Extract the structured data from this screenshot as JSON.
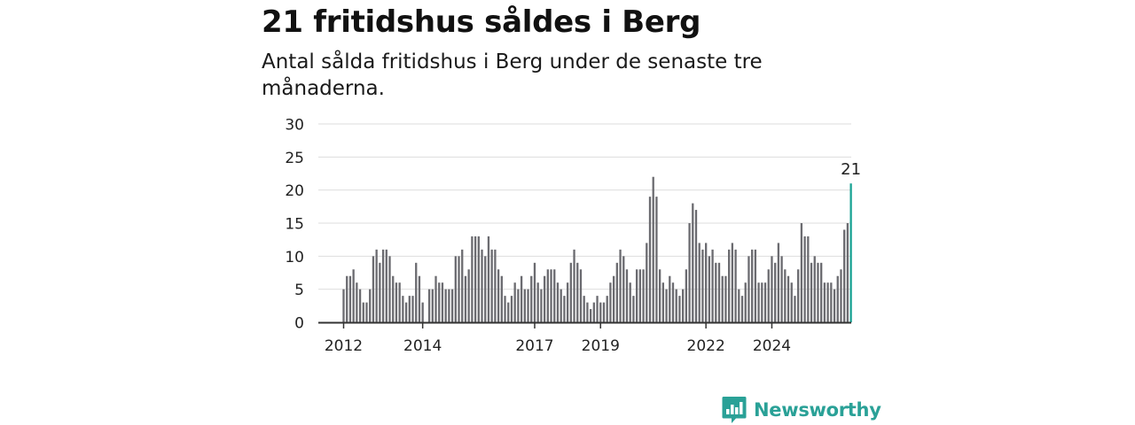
{
  "header": {
    "title": "21 fritidshus såldes i Berg",
    "subtitle": "Antal sålda fritidshus i Berg under de senaste tre månaderna."
  },
  "brand": {
    "name": "Newsworthy",
    "color": "#2aa197",
    "icon": "newsworthy-logo-icon"
  },
  "chart_data": {
    "type": "bar",
    "title": "21 fritidshus såldes i Berg",
    "subtitle": "Antal sålda fritidshus i Berg under de senaste tre månaderna.",
    "xlabel": "",
    "ylabel": "",
    "ylim": [
      0,
      30
    ],
    "yticks": [
      0,
      5,
      10,
      15,
      20,
      25,
      30
    ],
    "grid": true,
    "x_start": "2012-01",
    "x_tick_labels": [
      {
        "label": "2012",
        "index": 0
      },
      {
        "label": "2014",
        "index": 24
      },
      {
        "label": "2017",
        "index": 58
      },
      {
        "label": "2019",
        "index": 78
      },
      {
        "label": "2022",
        "index": 110
      },
      {
        "label": "2024",
        "index": 130
      }
    ],
    "colors": {
      "bar": "#6b6b70",
      "highlight": "#1aa394",
      "grid": "#dddddd",
      "axis": "#333333"
    },
    "highlight_label": "21",
    "values": [
      5,
      7,
      7,
      8,
      6,
      5,
      3,
      3,
      5,
      10,
      11,
      9,
      11,
      11,
      10,
      7,
      6,
      6,
      4,
      3,
      4,
      4,
      9,
      7,
      3,
      0,
      5,
      5,
      7,
      6,
      6,
      5,
      5,
      5,
      10,
      10,
      11,
      7,
      8,
      13,
      13,
      13,
      11,
      10,
      13,
      11,
      11,
      8,
      7,
      4,
      3,
      4,
      6,
      5,
      7,
      5,
      5,
      7,
      9,
      6,
      5,
      7,
      8,
      8,
      8,
      6,
      5,
      4,
      6,
      9,
      11,
      9,
      8,
      4,
      3,
      2,
      3,
      4,
      3,
      3,
      4,
      6,
      7,
      9,
      11,
      10,
      8,
      6,
      4,
      8,
      8,
      8,
      12,
      19,
      22,
      19,
      8,
      6,
      5,
      7,
      6,
      5,
      4,
      5,
      8,
      15,
      18,
      17,
      12,
      11,
      12,
      10,
      11,
      9,
      9,
      7,
      7,
      11,
      12,
      11,
      5,
      4,
      6,
      10,
      11,
      11,
      6,
      6,
      6,
      8,
      10,
      9,
      12,
      10,
      8,
      7,
      6,
      4,
      8,
      15,
      13,
      13,
      9,
      10,
      9,
      9,
      6,
      6,
      6,
      5,
      7,
      8,
      14,
      15,
      21
    ]
  }
}
